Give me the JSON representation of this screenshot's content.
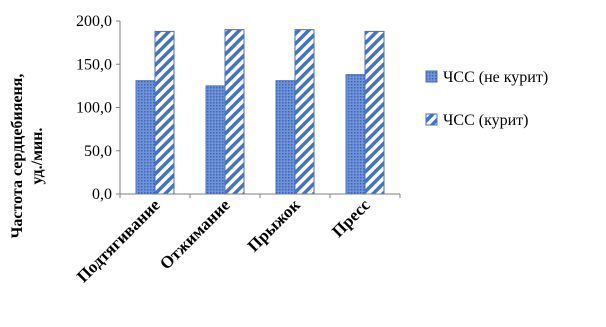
{
  "chart_data": {
    "type": "bar",
    "categories": [
      "Подтягивание",
      "Отжимание",
      "Прыжок",
      "Пресс"
    ],
    "series": [
      {
        "name": "ЧСС (не курит)",
        "values": [
          131,
          125,
          131,
          138
        ],
        "color": "#4472c4",
        "pattern": "dotted-fill"
      },
      {
        "name": "ЧСС (курит)",
        "values": [
          188,
          190,
          190,
          188
        ],
        "color": "#4472c4",
        "pattern": "diagonal-stripes"
      }
    ],
    "yticks": [
      "0,0",
      "50,0",
      "100,0",
      "150,0",
      "200,0"
    ],
    "ylim": [
      0,
      200
    ],
    "ylabel_line1": "Частота сердцебияеня,",
    "ylabel_line2": "уд./мин.",
    "legend_position": "right",
    "grid": false
  }
}
